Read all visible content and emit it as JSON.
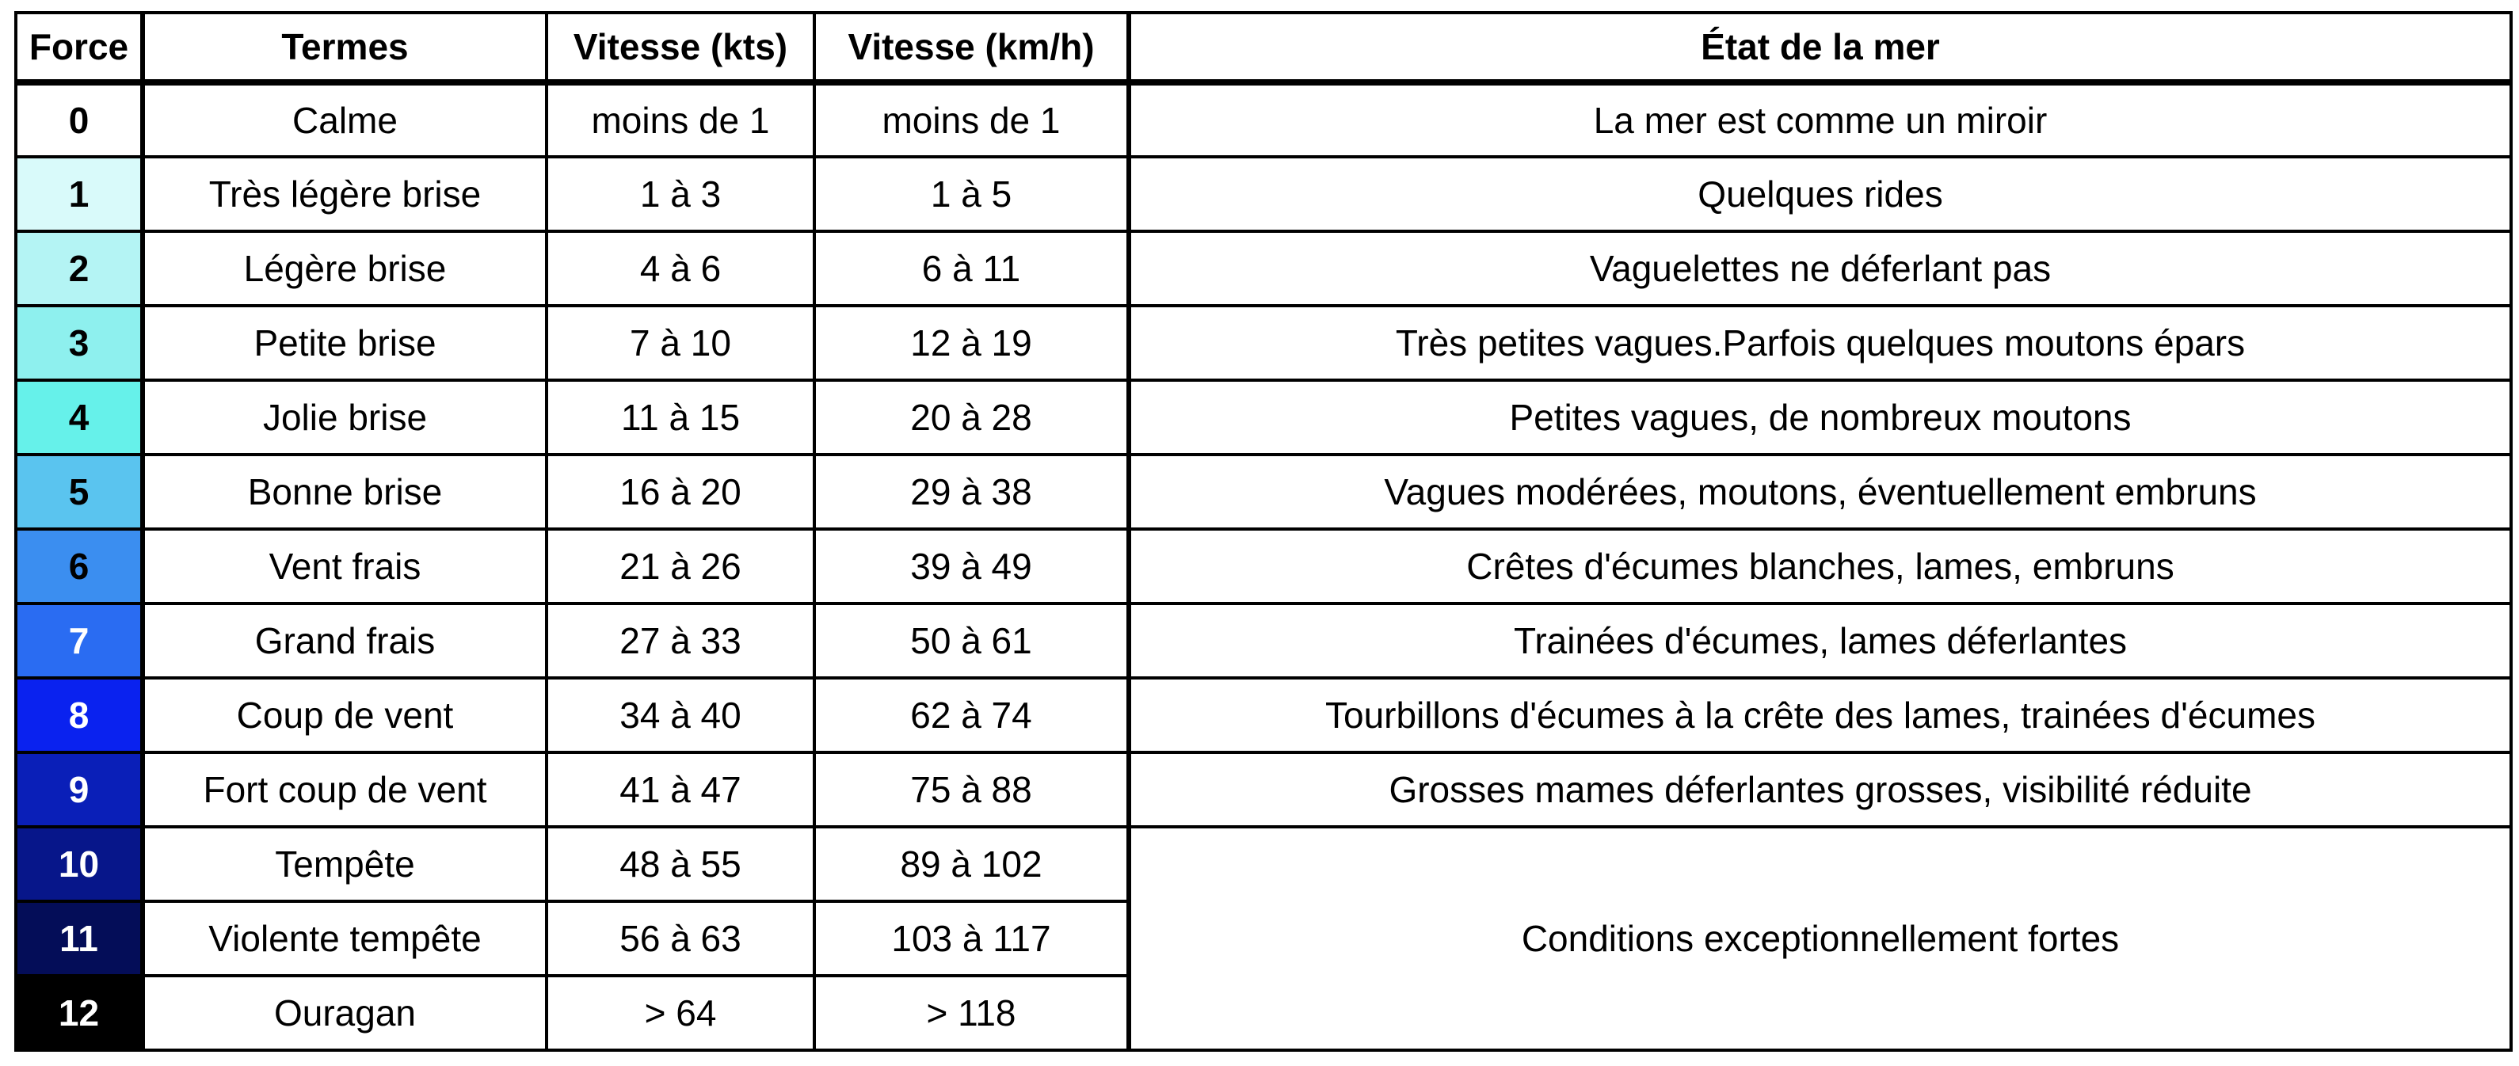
{
  "table": {
    "headers": {
      "force": "Force",
      "terms": "Termes",
      "speed_kts": "Vitesse (kts)",
      "speed_kmh": "Vitesse (km/h)",
      "sea_state": "État de la mer"
    },
    "rows": [
      {
        "force": "0",
        "terms": "Calme",
        "kts": "moins de 1",
        "kmh": "moins de 1",
        "sea": "La mer est comme un miroir",
        "color": "#ffffff",
        "text_color": "#000000"
      },
      {
        "force": "1",
        "terms": "Très légère brise",
        "kts": "1 à 3",
        "kmh": "1 à 5",
        "sea": "Quelques rides",
        "color": "#d9fafa",
        "text_color": "#000000"
      },
      {
        "force": "2",
        "terms": "Légère brise",
        "kts": "4 à 6",
        "kmh": "6 à 11",
        "sea": "Vaguelettes ne déferlant pas",
        "color": "#b4f4f4",
        "text_color": "#000000"
      },
      {
        "force": "3",
        "terms": "Petite brise",
        "kts": "7 à 10",
        "kmh": "12 à 19",
        "sea": "Très petites vagues.Parfois quelques moutons épars",
        "color": "#8ef0ee",
        "text_color": "#000000"
      },
      {
        "force": "4",
        "terms": "Jolie brise",
        "kts": "11 à 15",
        "kmh": "20 à 28",
        "sea": "Petites vagues, de nombreux moutons",
        "color": "#66f1ea",
        "text_color": "#000000"
      },
      {
        "force": "5",
        "terms": "Bonne brise",
        "kts": "16 à 20",
        "kmh": "29 à 38",
        "sea": "Vagues modérées, moutons, éventuellement embruns",
        "color": "#5ac4ef",
        "text_color": "#000000"
      },
      {
        "force": "6",
        "terms": "Vent frais",
        "kts": "21 à 26",
        "kmh": "39 à 49",
        "sea": "Crêtes d'écumes blanches, lames, embruns",
        "color": "#3b8ef0",
        "text_color": "#000000"
      },
      {
        "force": "7",
        "terms": "Grand frais",
        "kts": "27 à 33",
        "kmh": "50 à 61",
        "sea": "Trainées d'écumes, lames déferlantes",
        "color": "#2a6cf2",
        "text_color": "#ffffff"
      },
      {
        "force": "8",
        "terms": "Coup de vent",
        "kts": "34 à 40",
        "kmh": "62 à 74",
        "sea": "Tourbillons d'écumes à la crête des lames, trainées d'écumes",
        "color": "#0a22ef",
        "text_color": "#ffffff"
      },
      {
        "force": "9",
        "terms": "Fort coup de vent",
        "kts": "41 à 47",
        "kmh": "75 à 88",
        "sea": "Grosses mames déferlantes grosses, visibilité réduite",
        "color": "#0a1fb8",
        "text_color": "#ffffff"
      },
      {
        "force": "10",
        "terms": "Tempête",
        "kts": "48 à 55",
        "kmh": "89 à 102",
        "sea": "",
        "color": "#07168a",
        "text_color": "#ffffff"
      },
      {
        "force": "11",
        "terms": "Violente tempête",
        "kts": "56 à 63",
        "kmh": "103 à 117",
        "sea": "",
        "color": "#040d58",
        "text_color": "#ffffff"
      },
      {
        "force": "12",
        "terms": "Ouragan",
        "kts": "> 64",
        "kmh": "> 118",
        "sea": "",
        "color": "#000000",
        "text_color": "#ffffff"
      }
    ],
    "merged_sea_state": "Conditions exceptionnellement fortes"
  }
}
